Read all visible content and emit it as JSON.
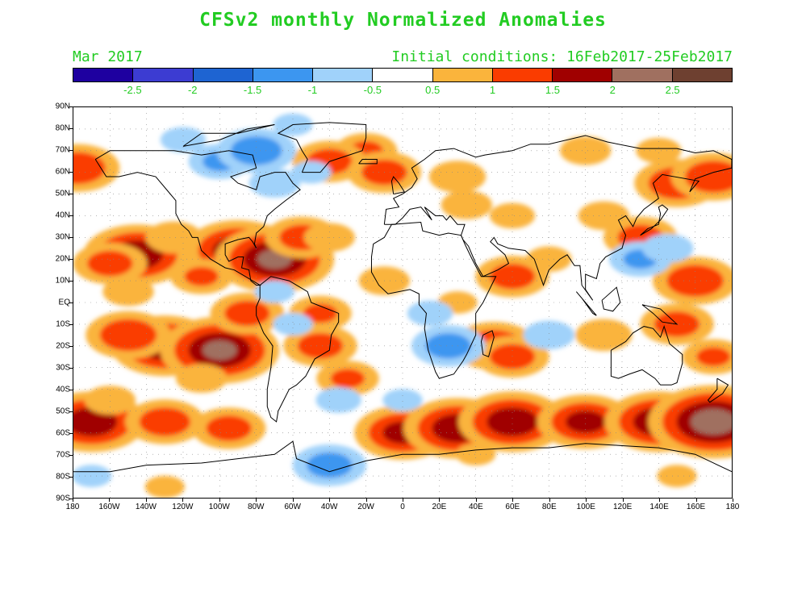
{
  "header": {
    "title": "CFSv2 monthly Normalized Anomalies",
    "month": "Mar 2017",
    "initial_conditions": "Initial conditions: 16Feb2017-25Feb2017"
  },
  "colorbar": {
    "colors": [
      "#1e00a0",
      "#3c3cd2",
      "#1e64d2",
      "#3c96f0",
      "#a0d2fa",
      "#ffffff",
      "#fab43c",
      "#fa3c00",
      "#a00000",
      "#a07060",
      "#6e4030"
    ],
    "labels": [
      "-2.5",
      "-2",
      "-1.5",
      "-1",
      "-0.5",
      "0.5",
      "1",
      "1.5",
      "2",
      "2.5"
    ]
  },
  "axes": {
    "lat_labels": [
      "90N",
      "80N",
      "70N",
      "60N",
      "50N",
      "40N",
      "30N",
      "20N",
      "10N",
      "EQ",
      "10S",
      "20S",
      "30S",
      "40S",
      "50S",
      "60S",
      "70S",
      "80S",
      "90S"
    ],
    "lon_labels": [
      "180",
      "160W",
      "140W",
      "120W",
      "100W",
      "80W",
      "60W",
      "40W",
      "20W",
      "0",
      "20E",
      "40E",
      "60E",
      "80E",
      "100E",
      "120E",
      "140E",
      "160E",
      "180"
    ]
  },
  "map_data": {
    "type": "heatmap",
    "lon_range": [
      -180,
      180
    ],
    "lat_range": [
      -90,
      90
    ],
    "grid": "dotted",
    "anomalies": [
      {
        "lon": -145,
        "lat": 22,
        "v": 1.8
      },
      {
        "lon": -160,
        "lat": 18,
        "v": 1.2
      },
      {
        "lon": -125,
        "lat": 30,
        "v": 0.9
      },
      {
        "lon": -90,
        "lat": 24,
        "v": 1.8
      },
      {
        "lon": -70,
        "lat": 20,
        "v": 2.0
      },
      {
        "lon": -55,
        "lat": 30,
        "v": 1.2
      },
      {
        "lon": -40,
        "lat": 30,
        "v": 0.8
      },
      {
        "lon": -110,
        "lat": 12,
        "v": 1.0
      },
      {
        "lon": -150,
        "lat": 5,
        "v": 0.8
      },
      {
        "lon": -130,
        "lat": -20,
        "v": 1.8
      },
      {
        "lon": -100,
        "lat": -22,
        "v": 2.0
      },
      {
        "lon": -150,
        "lat": -15,
        "v": 1.4
      },
      {
        "lon": -85,
        "lat": -5,
        "v": 1.2
      },
      {
        "lon": -110,
        "lat": -35,
        "v": 0.8
      },
      {
        "lon": -45,
        "lat": -20,
        "v": 1.2
      },
      {
        "lon": -30,
        "lat": -35,
        "v": 1.0
      },
      {
        "lon": -45,
        "lat": -5,
        "v": 1.0
      },
      {
        "lon": -10,
        "lat": 10,
        "v": 0.8
      },
      {
        "lon": -170,
        "lat": -55,
        "v": 1.8
      },
      {
        "lon": -130,
        "lat": -55,
        "v": 1.3
      },
      {
        "lon": -95,
        "lat": -58,
        "v": 1.2
      },
      {
        "lon": -160,
        "lat": -45,
        "v": 0.8
      },
      {
        "lon": 0,
        "lat": -60,
        "v": 1.6
      },
      {
        "lon": 30,
        "lat": -58,
        "v": 1.8
      },
      {
        "lon": 60,
        "lat": -55,
        "v": 1.8
      },
      {
        "lon": 100,
        "lat": -55,
        "v": 1.6
      },
      {
        "lon": 140,
        "lat": -55,
        "v": 1.8
      },
      {
        "lon": 170,
        "lat": -55,
        "v": 2.2
      },
      {
        "lon": 50,
        "lat": -20,
        "v": 1.4
      },
      {
        "lon": 60,
        "lat": -25,
        "v": 1.2
      },
      {
        "lon": 30,
        "lat": 0,
        "v": 0.6
      },
      {
        "lon": 35,
        "lat": 45,
        "v": 0.8
      },
      {
        "lon": 30,
        "lat": 58,
        "v": 0.9
      },
      {
        "lon": 60,
        "lat": 12,
        "v": 1.2
      },
      {
        "lon": 80,
        "lat": 20,
        "v": 0.7
      },
      {
        "lon": 60,
        "lat": 40,
        "v": 0.7
      },
      {
        "lon": 110,
        "lat": 40,
        "v": 0.8
      },
      {
        "lon": 130,
        "lat": 30,
        "v": 1.2
      },
      {
        "lon": 150,
        "lat": 55,
        "v": 1.4
      },
      {
        "lon": 170,
        "lat": 58,
        "v": 1.4
      },
      {
        "lon": -20,
        "lat": 70,
        "v": 1.0
      },
      {
        "lon": -40,
        "lat": 65,
        "v": 1.2
      },
      {
        "lon": -10,
        "lat": 60,
        "v": 1.2
      },
      {
        "lon": 100,
        "lat": 70,
        "v": 0.8
      },
      {
        "lon": 140,
        "lat": 70,
        "v": 0.7
      },
      {
        "lon": 160,
        "lat": 10,
        "v": 1.4
      },
      {
        "lon": 150,
        "lat": -10,
        "v": 1.2
      },
      {
        "lon": 170,
        "lat": -25,
        "v": 1.0
      },
      {
        "lon": 110,
        "lat": -15,
        "v": 0.9
      },
      {
        "lon": -178,
        "lat": 62,
        "v": 1.4
      },
      {
        "lon": -100,
        "lat": 65,
        "v": -1.0
      },
      {
        "lon": -80,
        "lat": 70,
        "v": -1.3
      },
      {
        "lon": -70,
        "lat": 55,
        "v": -0.8
      },
      {
        "lon": -120,
        "lat": 75,
        "v": -0.7
      },
      {
        "lon": -50,
        "lat": 60,
        "v": -0.6
      },
      {
        "lon": -60,
        "lat": 82,
        "v": -0.6
      },
      {
        "lon": 25,
        "lat": -20,
        "v": -1.2
      },
      {
        "lon": 15,
        "lat": -5,
        "v": -0.7
      },
      {
        "lon": 0,
        "lat": -45,
        "v": -0.6
      },
      {
        "lon": -35,
        "lat": -45,
        "v": -0.7
      },
      {
        "lon": -40,
        "lat": -75,
        "v": -1.2
      },
      {
        "lon": 80,
        "lat": -15,
        "v": -0.8
      },
      {
        "lon": 130,
        "lat": 20,
        "v": -1.0
      },
      {
        "lon": 145,
        "lat": 25,
        "v": -0.8
      },
      {
        "lon": -60,
        "lat": -10,
        "v": -0.6
      },
      {
        "lon": -70,
        "lat": 5,
        "v": -0.6
      },
      {
        "lon": -170,
        "lat": -80,
        "v": -0.6
      },
      {
        "lon": -130,
        "lat": -85,
        "v": 0.6
      },
      {
        "lon": 150,
        "lat": -80,
        "v": 0.6
      },
      {
        "lon": 40,
        "lat": -70,
        "v": 0.6
      }
    ]
  }
}
